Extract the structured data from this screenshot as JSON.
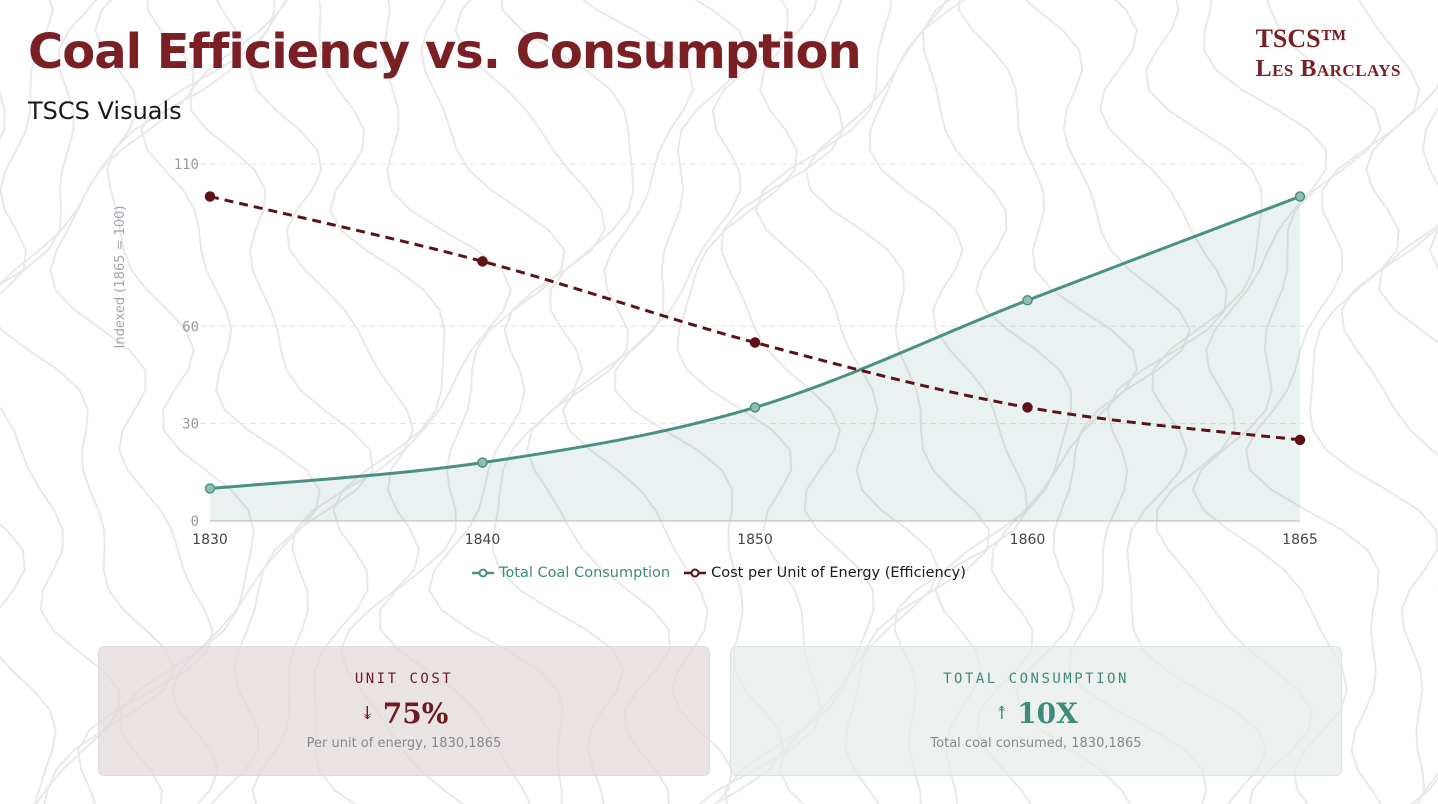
{
  "header": {
    "title": "Coal Efficiency vs. Consumption",
    "subtitle": "TSCS Visuals",
    "brand_line1": "TSCS™",
    "brand_line2": "Les Barclays"
  },
  "colors": {
    "title": "#7a1f24",
    "consumption": "#4a9184",
    "efficiency": "#5c1218",
    "grid": "#e4e4e4",
    "axis_text": "#9a9aa6"
  },
  "chart_data": {
    "type": "line",
    "title": "Coal Efficiency vs. Consumption",
    "xlabel": "",
    "ylabel": "Indexed (1865 = 100)",
    "categories": [
      "1830",
      "1840",
      "1850",
      "1860",
      "1865"
    ],
    "y_ticks": [
      0,
      30,
      60,
      110
    ],
    "ylim": [
      0,
      110
    ],
    "grid": true,
    "legend_position": "bottom-center",
    "series": [
      {
        "name": "Total Coal Consumption",
        "values": [
          10,
          18,
          35,
          68,
          100
        ],
        "style": "solid",
        "area": true
      },
      {
        "name": "Cost per Unit of Energy (Efficiency)",
        "values": [
          100,
          80,
          55,
          35,
          25
        ],
        "style": "dashed",
        "area": false
      }
    ]
  },
  "cards": {
    "unit_cost": {
      "label": "UNIT COST",
      "arrow": "↡",
      "value": "75%",
      "note": "Per unit of energy, 1830,1865"
    },
    "total_consumption": {
      "label": "TOTAL CONSUMPTION",
      "arrow": "↟",
      "value": "10X",
      "note": "Total coal consumed, 1830,1865"
    }
  }
}
